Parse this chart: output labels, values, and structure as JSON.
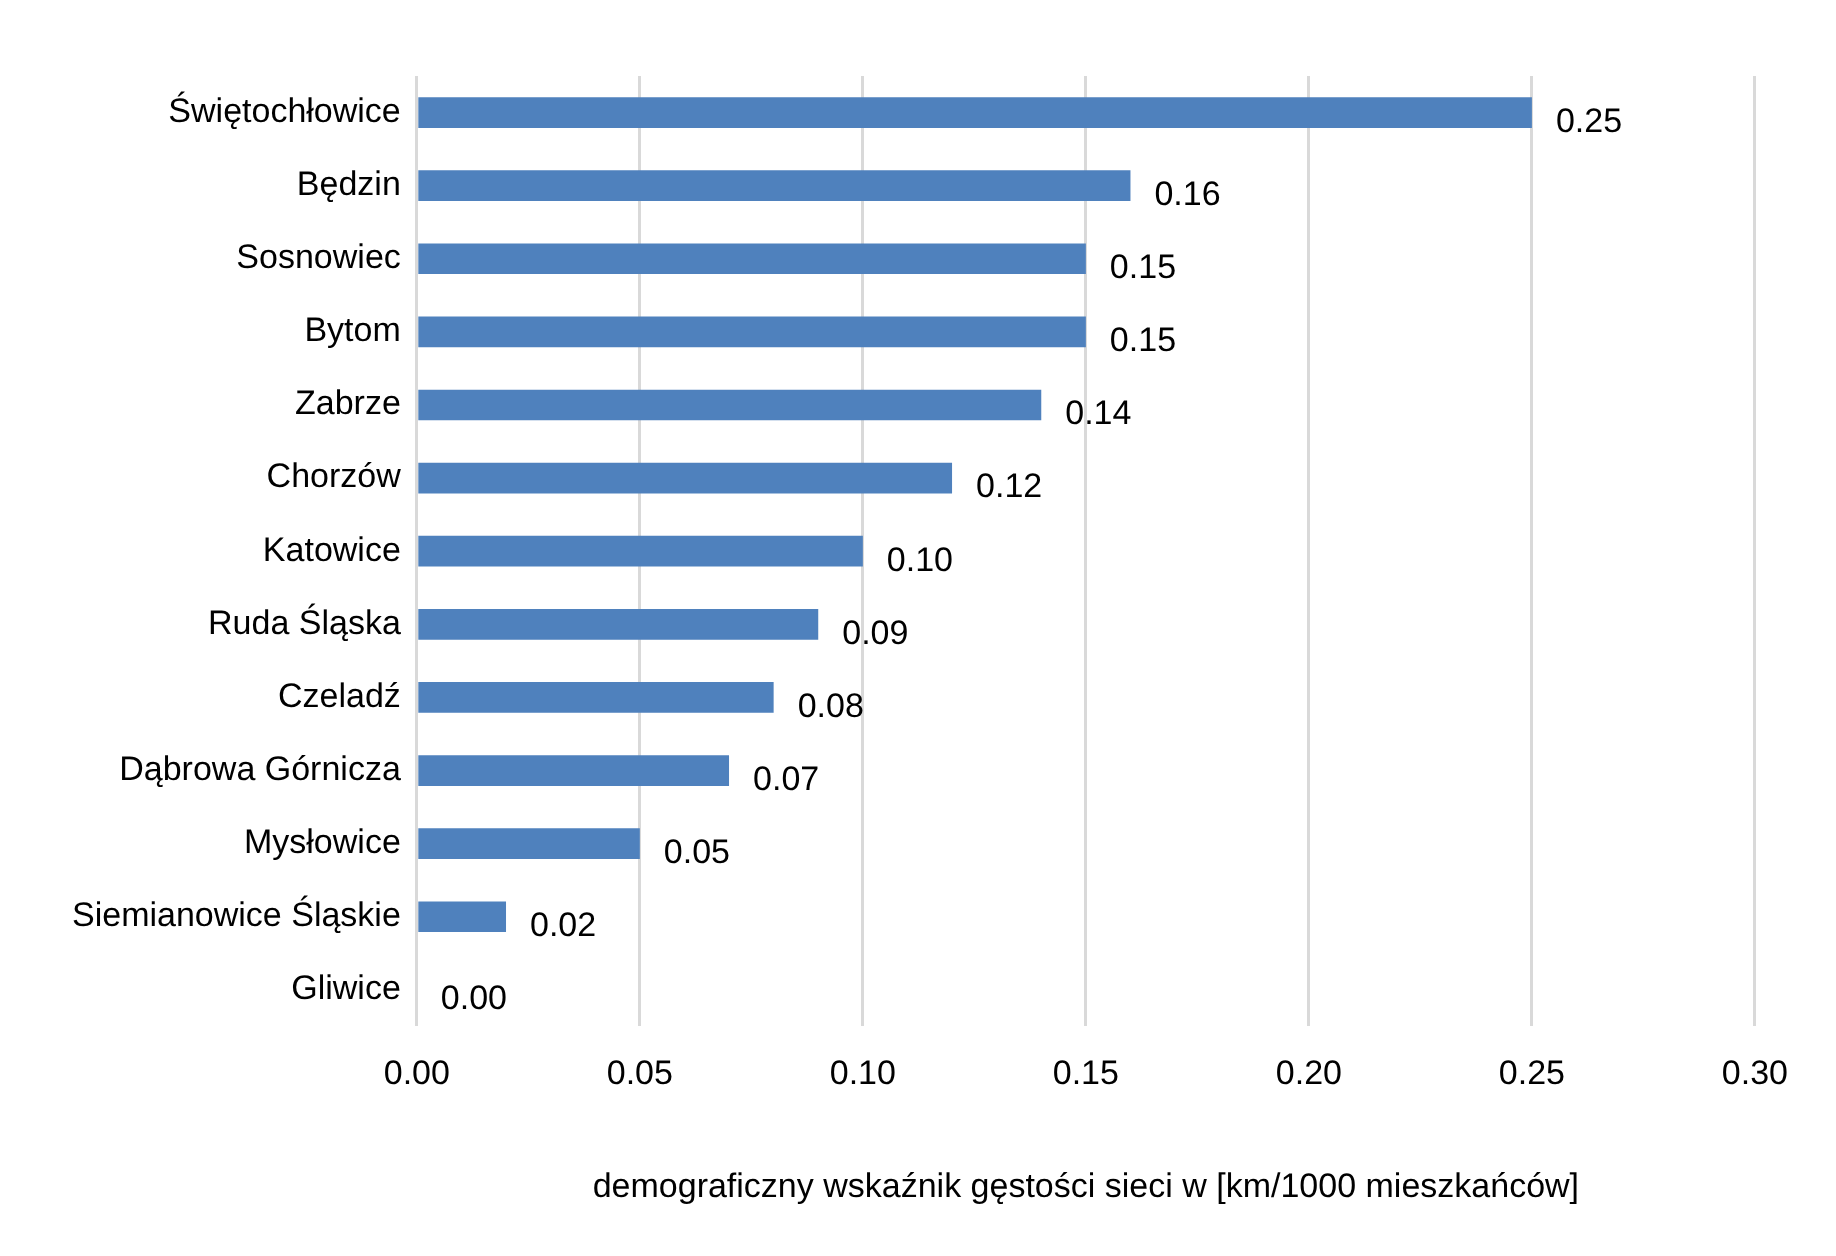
{
  "chart_data": {
    "type": "bar",
    "orientation": "horizontal",
    "xlabel": "demograficzny wskaźnik gęstości sieci w [km/1000 mieszkańców]",
    "categories": [
      "Świętochłowice",
      "Będzin",
      "Sosnowiec",
      "Bytom",
      "Zabrze",
      "Chorzów",
      "Katowice",
      "Ruda Śląska",
      "Czeladź",
      "Dąbrowa Górnicza",
      "Mysłowice",
      "Siemianowice Śląskie",
      "Gliwice"
    ],
    "values": [
      0.25,
      0.16,
      0.15,
      0.15,
      0.14,
      0.12,
      0.1,
      0.09,
      0.08,
      0.07,
      0.05,
      0.02,
      0.0
    ],
    "value_labels": [
      "0.25",
      "0.16",
      "0.15",
      "0.15",
      "0.14",
      "0.12",
      "0.10",
      "0.09",
      "0.08",
      "0.07",
      "0.05",
      "0.02",
      "0.00"
    ],
    "color": "#4f81bd",
    "xlim": [
      0,
      0.3
    ],
    "xticks": [
      {
        "value": 0,
        "label": "0.00"
      },
      {
        "value": 0.05,
        "label": "0.05"
      },
      {
        "value": 0.1,
        "label": "0.10"
      },
      {
        "value": 0.15,
        "label": "0.15"
      },
      {
        "value": 0.2,
        "label": "0.20"
      },
      {
        "value": 0.25,
        "label": "0.25"
      },
      {
        "value": 0.3,
        "label": "0.30"
      }
    ],
    "grid": "x",
    "legend": false
  }
}
